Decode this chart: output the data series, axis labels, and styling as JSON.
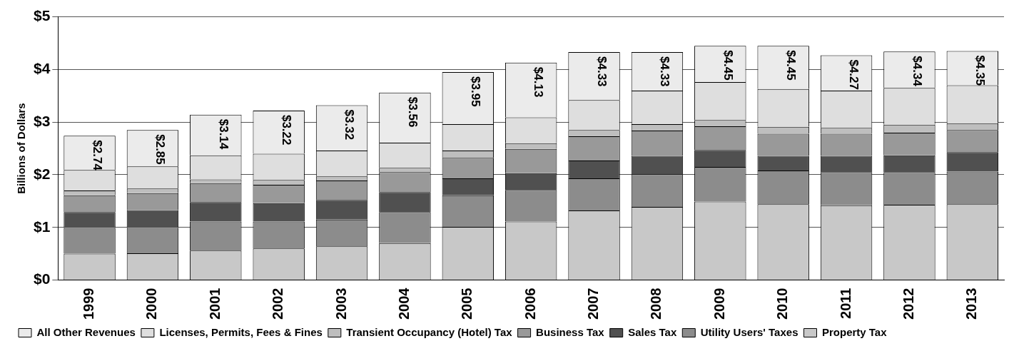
{
  "chart_data": {
    "type": "bar",
    "stacked": true,
    "ylabel": "Billions of Dollars",
    "categories": [
      "1999",
      "2000",
      "2001",
      "2002",
      "2003",
      "2004",
      "2005",
      "2006",
      "2007",
      "2008",
      "2009",
      "2010",
      "2011",
      "2012",
      "2013"
    ],
    "series": [
      {
        "name": "Property Tax",
        "color": "#c8c8c8",
        "values": [
          0.5,
          0.51,
          0.56,
          0.6,
          0.64,
          0.7,
          1.01,
          1.11,
          1.32,
          1.39,
          1.49,
          1.44,
          1.42,
          1.43,
          1.44
        ]
      },
      {
        "name": "Utility Users' Taxes",
        "color": "#8c8c8c",
        "values": [
          0.49,
          0.48,
          0.55,
          0.51,
          0.51,
          0.59,
          0.6,
          0.6,
          0.61,
          0.62,
          0.66,
          0.64,
          0.63,
          0.62,
          0.62
        ]
      },
      {
        "name": "Sales Tax",
        "color": "#505050",
        "values": [
          0.3,
          0.34,
          0.37,
          0.35,
          0.37,
          0.38,
          0.32,
          0.32,
          0.34,
          0.35,
          0.32,
          0.28,
          0.31,
          0.32,
          0.37
        ]
      },
      {
        "name": "Business Tax",
        "color": "#999999",
        "values": [
          0.32,
          0.32,
          0.36,
          0.35,
          0.37,
          0.38,
          0.39,
          0.46,
          0.46,
          0.48,
          0.45,
          0.42,
          0.42,
          0.43,
          0.42
        ]
      },
      {
        "name": "Transient Occupancy (Hotel) Tax",
        "color": "#bebebe",
        "values": [
          0.09,
          0.09,
          0.07,
          0.09,
          0.08,
          0.08,
          0.14,
          0.11,
          0.12,
          0.12,
          0.12,
          0.13,
          0.11,
          0.15,
          0.13
        ]
      },
      {
        "name": "Licenses, Permits, Fees & Fines",
        "color": "#dedede",
        "values": [
          0.39,
          0.42,
          0.46,
          0.5,
          0.49,
          0.48,
          0.5,
          0.49,
          0.57,
          0.64,
          0.72,
          0.72,
          0.71,
          0.7,
          0.72
        ]
      },
      {
        "name": "All Other Revenues",
        "color": "#ebebeb",
        "values": [
          0.65,
          0.69,
          0.77,
          0.82,
          0.86,
          0.95,
          0.99,
          1.04,
          0.91,
          0.73,
          0.69,
          0.82,
          0.67,
          0.69,
          0.65
        ]
      }
    ],
    "totals": [
      "$2.74",
      "$2.85",
      "$3.14",
      "$3.22",
      "$3.32",
      "$3.56",
      "$3.95",
      "$4.13",
      "$4.33",
      "$4.33",
      "$4.45",
      "$4.45",
      "$4.27",
      "$4.34",
      "$4.35"
    ],
    "ylim": [
      0,
      5
    ],
    "yticks": [
      {
        "value": 0,
        "label": "$0"
      },
      {
        "value": 1,
        "label": "$1"
      },
      {
        "value": 2,
        "label": "$2"
      },
      {
        "value": 3,
        "label": "$3"
      },
      {
        "value": 4,
        "label": "$4"
      },
      {
        "value": 5,
        "label": "$5"
      }
    ],
    "grid": "y",
    "legend": "bottom"
  }
}
